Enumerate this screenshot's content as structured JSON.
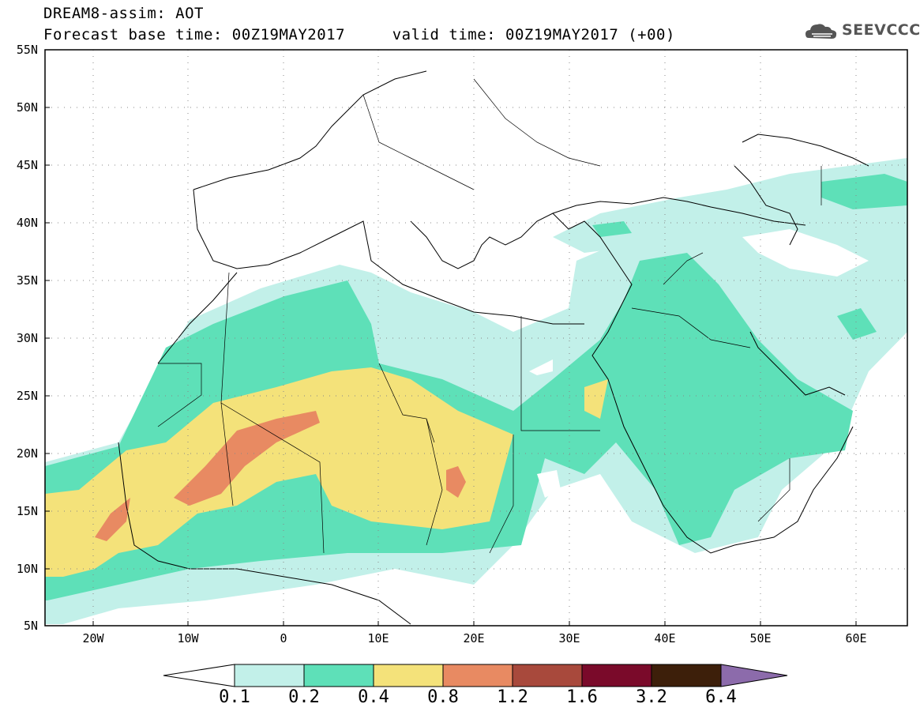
{
  "header": {
    "title_line1": "DREAM8-assim: AOT",
    "title_line2": "Forecast base time: 00Z19MAY2017     valid time: 00Z19MAY2017 (+00)"
  },
  "logo": {
    "text": "SEEVCCC",
    "icon": "cloud-logo-icon"
  },
  "map": {
    "lat_labels": [
      "55N",
      "50N",
      "45N",
      "40N",
      "35N",
      "30N",
      "25N",
      "20N",
      "15N",
      "10N",
      "5N"
    ],
    "lon_labels": [
      "20W",
      "10W",
      "0",
      "10E",
      "20E",
      "30E",
      "40E",
      "50E",
      "60E"
    ],
    "lon_range": [
      -25,
      65
    ],
    "lat_range": [
      5,
      55
    ],
    "gridlines": "dotted"
  },
  "colorbar": {
    "labels": [
      "0.1",
      "0.2",
      "0.4",
      "0.8",
      "1.2",
      "1.6",
      "3.2",
      "6.4"
    ],
    "colors": [
      "#ffffff",
      "#c2f0e9",
      "#5ee0b8",
      "#f4e27a",
      "#e88a62",
      "#a8493c",
      "#7a0a2a",
      "#3d1f0a",
      "#8c6bab"
    ]
  }
}
